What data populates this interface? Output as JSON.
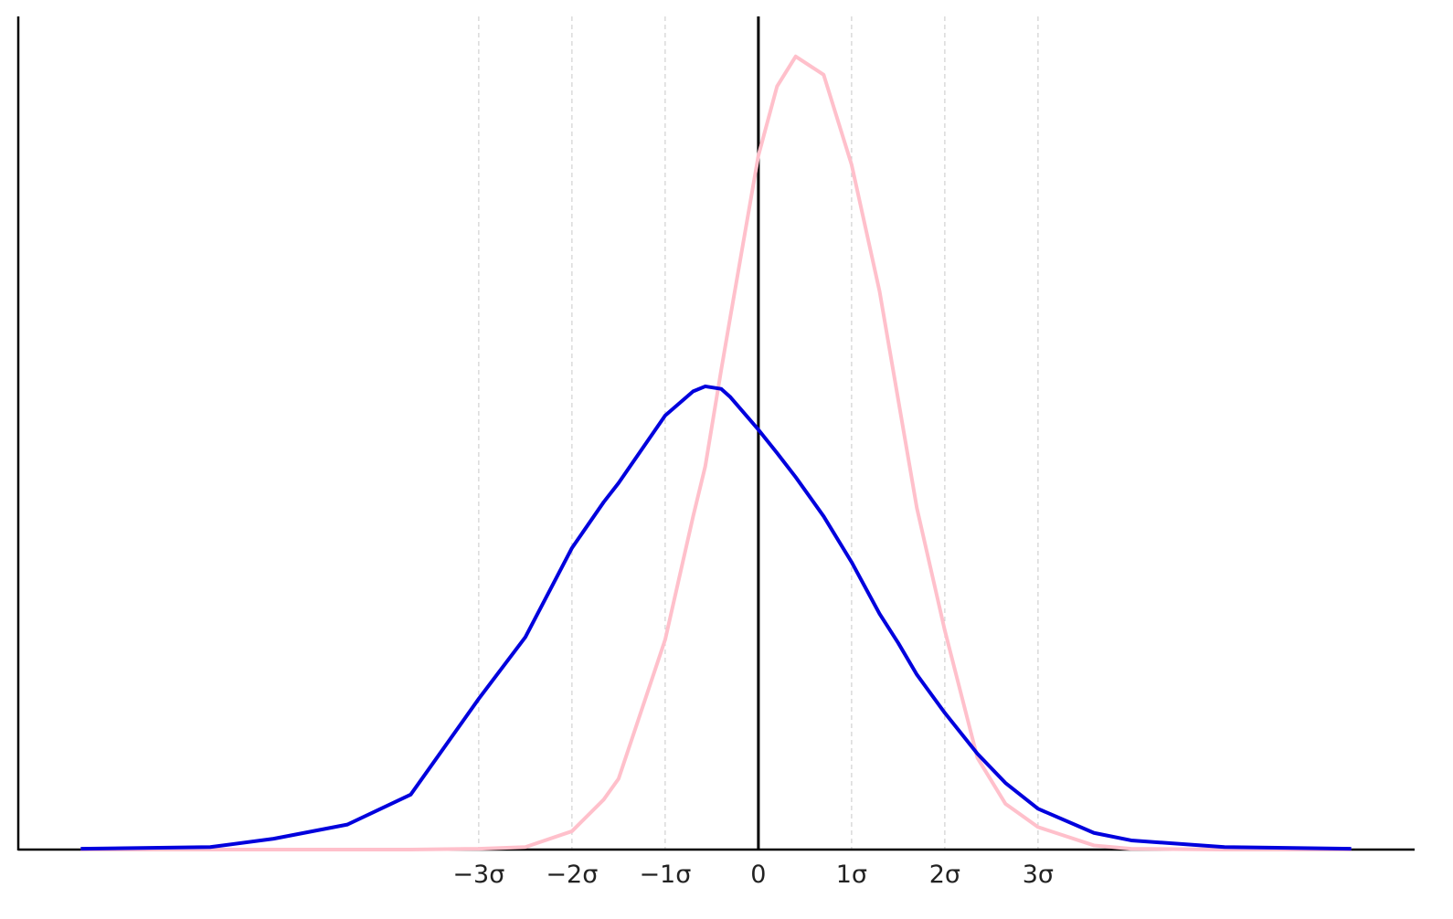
{
  "chart_data": {
    "type": "line",
    "x": [
      -7.27,
      -5.88,
      -5.2,
      -4.41,
      -3.73,
      -3,
      -2.5,
      -2,
      -1.66,
      -1.5,
      -1,
      -0.7,
      -0.57,
      -0.4,
      -0.3,
      0,
      0.2,
      0.4,
      0.7,
      1,
      1.3,
      1.5,
      1.7,
      2,
      2.35,
      2.65,
      3,
      3.6,
      4,
      5,
      6.36
    ],
    "series": [
      {
        "color": "#ffc0cb",
        "values": [
          0,
          0,
          0,
          0,
          0,
          0.001,
          0.003,
          0.022,
          0.06,
          0.085,
          0.252,
          0.4,
          0.46,
          0.575,
          0.64,
          0.833,
          0.916,
          0.952,
          0.93,
          0.822,
          0.67,
          0.54,
          0.41,
          0.263,
          0.11,
          0.055,
          0.027,
          0.005,
          0.001,
          0,
          0
        ]
      },
      {
        "color": "#0000dd",
        "values": [
          0.001,
          0.003,
          0.013,
          0.03,
          0.066,
          0.181,
          0.255,
          0.362,
          0.417,
          0.44,
          0.521,
          0.55,
          0.556,
          0.553,
          0.543,
          0.504,
          0.476,
          0.447,
          0.4,
          0.345,
          0.283,
          0.248,
          0.21,
          0.164,
          0.115,
          0.08,
          0.049,
          0.02,
          0.011,
          0.003,
          0.001
        ]
      }
    ],
    "xlim": [
      -7.94,
      7.04
    ],
    "ylim": [
      0,
      1
    ],
    "xticks": [
      {
        "value": -3,
        "label": "−3σ"
      },
      {
        "value": -2,
        "label": "−2σ"
      },
      {
        "value": -1,
        "label": "−1σ"
      },
      0,
      {
        "value": 1,
        "label": "1σ"
      },
      {
        "value": 2,
        "label": "2σ"
      },
      {
        "value": 3,
        "label": "3σ"
      }
    ],
    "grid": true
  }
}
